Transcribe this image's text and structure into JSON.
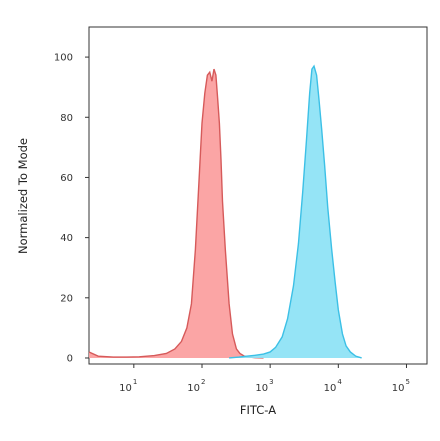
{
  "chart_data": {
    "type": "area",
    "title": "",
    "xlabel": "FITC-A",
    "ylabel": "Normalized To Mode",
    "x_scale": "log",
    "xlim": [
      2.2,
      200000
    ],
    "ylim": [
      -2,
      110
    ],
    "y_ticks": [
      "0",
      "20",
      "40",
      "60",
      "80",
      "100"
    ],
    "y_tick_values": [
      0,
      20,
      40,
      60,
      80,
      100
    ],
    "x_ticks": [
      {
        "base": "10",
        "exp": "1",
        "value": 10
      },
      {
        "base": "10",
        "exp": "2",
        "value": 100
      },
      {
        "base": "10",
        "exp": "3",
        "value": 1000
      },
      {
        "base": "10",
        "exp": "4",
        "value": 10000
      },
      {
        "base": "10",
        "exp": "5",
        "value": 100000
      }
    ],
    "grid": false,
    "legend": "none",
    "series": [
      {
        "color": "#f47a7a",
        "fill": "#fba0a0",
        "stroke": "#d65a5a",
        "x": [
          2.2,
          3,
          5,
          8,
          12,
          20,
          30,
          40,
          50,
          60,
          70,
          80,
          90,
          100,
          110,
          120,
          130,
          140,
          150,
          160,
          170,
          180,
          190,
          200,
          220,
          250,
          280,
          320,
          360,
          420,
          500,
          600,
          800
        ],
        "y": [
          2,
          0.6,
          0.3,
          0.3,
          0.4,
          0.8,
          1.5,
          3,
          5.5,
          10,
          18,
          36,
          58,
          78,
          88,
          94,
          95,
          92,
          96,
          94,
          86,
          78,
          66,
          52,
          36,
          18,
          8,
          3,
          1.5,
          0.6,
          0.3,
          0.1,
          0
        ]
      },
      {
        "color": "#5bd0ee",
        "fill": "#8fe3f6",
        "stroke": "#3cc0e6",
        "x": [
          250,
          350,
          450,
          600,
          800,
          1000,
          1200,
          1500,
          1800,
          2200,
          2600,
          3000,
          3400,
          3800,
          4100,
          4400,
          4800,
          5200,
          5700,
          6300,
          7000,
          8000,
          9000,
          10000,
          11500,
          13000,
          15000,
          18000,
          22000
        ],
        "y": [
          0,
          0.3,
          0.6,
          0.9,
          1.3,
          2,
          3.5,
          7,
          13,
          24,
          38,
          55,
          72,
          88,
          96,
          97,
          94,
          86,
          76,
          64,
          50,
          36,
          25,
          16,
          8,
          4,
          2,
          0.6,
          0
        ]
      }
    ]
  }
}
